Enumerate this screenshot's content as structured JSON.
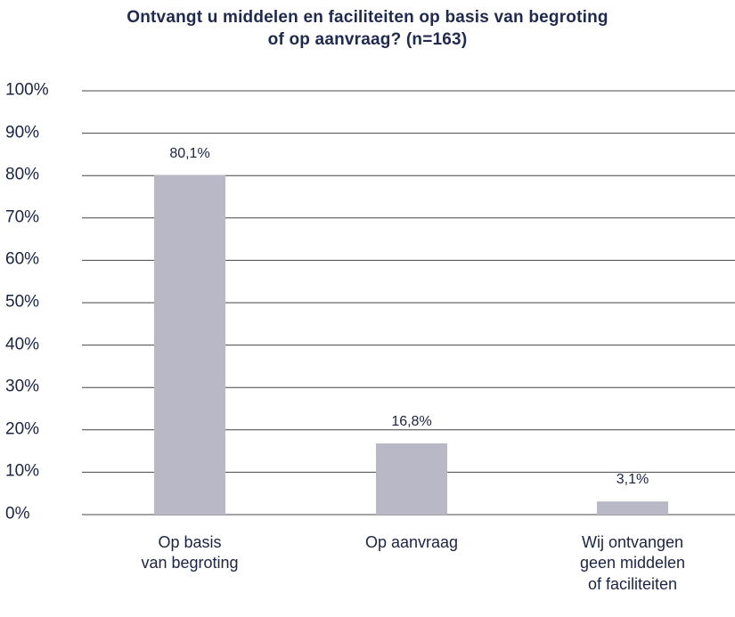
{
  "chart_data": {
    "type": "bar",
    "title": "Ontvangt u middelen en faciliteiten op basis van begroting\nof op aanvraag? (n=163)",
    "categories": [
      "Op basis\nvan begroting",
      "Op aanvraag",
      "Wij ontvangen\ngeen middelen\nof faciliteiten"
    ],
    "values": [
      80.1,
      16.8,
      3.1
    ],
    "value_labels": [
      "80,1%",
      "16,8%",
      "3,1%"
    ],
    "color": "#b8b8c6",
    "ylim": [
      0,
      100
    ],
    "yticks": [
      {
        "value": 0,
        "label": "0%"
      },
      {
        "value": 10,
        "label": "10%"
      },
      {
        "value": 20,
        "label": "20%"
      },
      {
        "value": 30,
        "label": "30%"
      },
      {
        "value": 40,
        "label": "40%"
      },
      {
        "value": 50,
        "label": "50%"
      },
      {
        "value": 60,
        "label": "60%"
      },
      {
        "value": 70,
        "label": "70%"
      },
      {
        "value": 80,
        "label": "80%"
      },
      {
        "value": 90,
        "label": "90%"
      },
      {
        "value": 100,
        "label": "100%"
      }
    ],
    "grid": true
  }
}
